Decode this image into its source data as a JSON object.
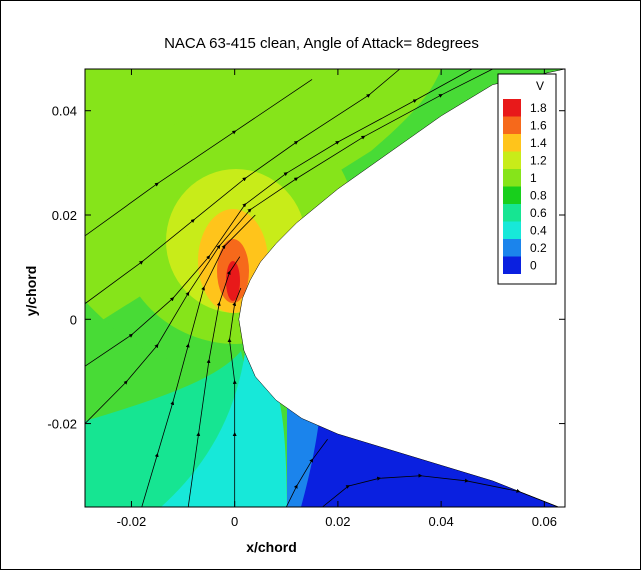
{
  "chart_data": {
    "type": "contour",
    "title": "NACA 63-415 clean, Angle of Attack= 8degrees",
    "xlabel": "x/chord",
    "ylabel": "y/chord",
    "xlim": [
      -0.029,
      0.064
    ],
    "ylim": [
      -0.036,
      0.048
    ],
    "xticks": [
      -0.02,
      0,
      0.02,
      0.04,
      0.06
    ],
    "xtick_labels": [
      "-0.02",
      "0",
      "0.02",
      "0.04",
      "0.06"
    ],
    "yticks": [
      -0.02,
      0,
      0.02,
      0.04
    ],
    "ytick_labels": [
      "-0.02",
      "0",
      "0.02",
      "0.04"
    ],
    "legend": {
      "title": "V",
      "placement": "top-right",
      "levels": [
        {
          "label": "1.8",
          "color": "#e8191a"
        },
        {
          "label": "1.6",
          "color": "#f6691b"
        },
        {
          "label": "1.4",
          "color": "#ffc41b"
        },
        {
          "label": "1.2",
          "color": "#c8ec19"
        },
        {
          "label": "1",
          "color": "#86e41a"
        },
        {
          "label": "0.8",
          "color": "#18cf1c"
        },
        {
          "label": "0.6",
          "color": "#16e592"
        },
        {
          "label": "0.4",
          "color": "#17e8d9"
        },
        {
          "label": "0.2",
          "color": "#1b84ec"
        },
        {
          "label": "0",
          "color": "#0a20e0"
        }
      ]
    },
    "colors": {
      "green_field": "#48db36",
      "light_green": "#86e41a",
      "yellow_green": "#c8ec19",
      "orange": "#ffc41b",
      "dark_orange": "#f6691b",
      "red": "#e8191a",
      "teal": "#16e592",
      "cyan": "#17e8d9",
      "blue": "#1b84ec",
      "dark_blue": "#0a20e0",
      "airfoil": "#ffffff",
      "streamline": "#000000"
    },
    "airfoil_surface": {
      "upper": [
        [
          0.064,
          0.048
        ],
        [
          0.05,
          0.045
        ],
        [
          0.04,
          0.039
        ],
        [
          0.03,
          0.032
        ],
        [
          0.02,
          0.025
        ],
        [
          0.012,
          0.0185
        ],
        [
          0.008,
          0.0145
        ],
        [
          0.005,
          0.011
        ],
        [
          0.003,
          0.0075
        ],
        [
          0.0015,
          0.004
        ],
        [
          0.0008,
          0.0
        ]
      ],
      "lower": [
        [
          0.0008,
          0.0
        ],
        [
          0.0018,
          -0.006
        ],
        [
          0.004,
          -0.011
        ],
        [
          0.008,
          -0.0155
        ],
        [
          0.013,
          -0.019
        ],
        [
          0.02,
          -0.022
        ],
        [
          0.03,
          -0.025
        ],
        [
          0.04,
          -0.028
        ],
        [
          0.05,
          -0.031
        ],
        [
          0.064,
          -0.0365
        ]
      ]
    },
    "streamlines": [
      {
        "points": [
          [
            -0.029,
            0.016
          ],
          [
            -0.015,
            0.026
          ],
          [
            0.0,
            0.036
          ],
          [
            0.015,
            0.046
          ]
        ]
      },
      {
        "points": [
          [
            -0.029,
            0.003
          ],
          [
            -0.018,
            0.011
          ],
          [
            -0.008,
            0.019
          ],
          [
            0.002,
            0.027
          ],
          [
            0.012,
            0.034
          ],
          [
            0.026,
            0.043
          ],
          [
            0.032,
            0.048
          ]
        ]
      },
      {
        "points": [
          [
            -0.029,
            -0.009
          ],
          [
            -0.02,
            -0.003
          ],
          [
            -0.012,
            0.004
          ],
          [
            -0.005,
            0.012
          ],
          [
            0.002,
            0.022
          ],
          [
            0.01,
            0.028
          ],
          [
            0.02,
            0.034
          ],
          [
            0.035,
            0.042
          ],
          [
            0.046,
            0.048
          ]
        ]
      },
      {
        "points": [
          [
            -0.029,
            -0.02
          ],
          [
            -0.021,
            -0.012
          ],
          [
            -0.015,
            -0.005
          ],
          [
            -0.009,
            0.005
          ],
          [
            -0.003,
            0.014
          ],
          [
            0.003,
            0.021
          ],
          [
            0.012,
            0.027
          ],
          [
            0.025,
            0.035
          ],
          [
            0.04,
            0.043
          ],
          [
            0.05,
            0.048
          ]
        ]
      },
      {
        "points": [
          [
            -0.018,
            -0.036
          ],
          [
            -0.015,
            -0.026
          ],
          [
            -0.012,
            -0.016
          ],
          [
            -0.009,
            -0.005
          ],
          [
            -0.006,
            0.006
          ],
          [
            -0.002,
            0.014
          ],
          [
            0.004,
            0.02
          ]
        ]
      },
      {
        "points": [
          [
            -0.009,
            -0.036
          ],
          [
            -0.007,
            -0.022
          ],
          [
            -0.005,
            -0.008
          ],
          [
            -0.003,
            0.003
          ],
          [
            -0.001,
            0.009
          ],
          [
            0.001,
            0.012
          ]
        ]
      },
      {
        "points": [
          [
            0.0,
            -0.036
          ],
          [
            0.0,
            -0.022
          ],
          [
            0.0,
            -0.012
          ],
          [
            -0.001,
            -0.004
          ],
          [
            0.0,
            0.003
          ],
          [
            0.0012,
            0.006
          ]
        ]
      },
      {
        "points": [
          [
            0.01,
            -0.036
          ],
          [
            0.012,
            -0.032
          ],
          [
            0.015,
            -0.027
          ],
          [
            0.018,
            -0.023
          ]
        ]
      },
      {
        "points": [
          [
            0.017,
            -0.036
          ],
          [
            0.022,
            -0.032
          ],
          [
            0.028,
            -0.0305
          ],
          [
            0.036,
            -0.03
          ],
          [
            0.045,
            -0.031
          ],
          [
            0.055,
            -0.033
          ],
          [
            0.064,
            -0.0365
          ]
        ]
      }
    ]
  }
}
